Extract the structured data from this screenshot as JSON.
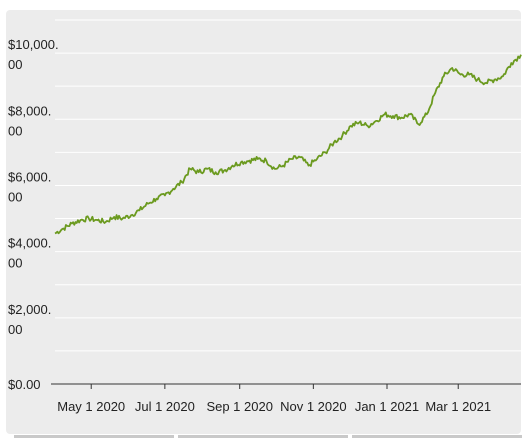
{
  "chart_data": {
    "type": "line",
    "title": "",
    "xlabel": "",
    "ylabel": "",
    "grid": true,
    "line_color": "#6b9a1f",
    "y_ticks": [
      {
        "value": 0,
        "line1": "$0.00",
        "line2": ""
      },
      {
        "value": 2000,
        "line1": "$2,000.",
        "line2": "00"
      },
      {
        "value": 4000,
        "line1": "$4,000.",
        "line2": "00"
      },
      {
        "value": 6000,
        "line1": "$6,000.",
        "line2": "00"
      },
      {
        "value": 8000,
        "line1": "$8,000.",
        "line2": "00"
      },
      {
        "value": 10000,
        "line1": "$10,000.",
        "line2": "00"
      }
    ],
    "x_ticks": [
      {
        "date": "2020-05-01",
        "label": "May 1 2020"
      },
      {
        "date": "2020-07-01",
        "label": "Jul 1 2020"
      },
      {
        "date": "2020-09-01",
        "label": "Sep 1 2020"
      },
      {
        "date": "2020-11-01",
        "label": "Nov 1 2020"
      },
      {
        "date": "2021-01-01",
        "label": "Jan 1 2021"
      },
      {
        "date": "2021-03-01",
        "label": "Mar 1 2021"
      }
    ],
    "xlim": [
      "2020-04-01",
      "2021-04-22"
    ],
    "ylim": [
      0,
      11000
    ],
    "series": [
      {
        "points": [
          [
            "2020-04-01",
            4550
          ],
          [
            "2020-04-08",
            4700
          ],
          [
            "2020-04-15",
            4850
          ],
          [
            "2020-04-22",
            4950
          ],
          [
            "2020-04-29",
            5000
          ],
          [
            "2020-05-06",
            4950
          ],
          [
            "2020-05-13",
            4900
          ],
          [
            "2020-05-20",
            5050
          ],
          [
            "2020-05-27",
            5000
          ],
          [
            "2020-06-03",
            5100
          ],
          [
            "2020-06-10",
            5250
          ],
          [
            "2020-06-17",
            5450
          ],
          [
            "2020-06-24",
            5600
          ],
          [
            "2020-07-01",
            5700
          ],
          [
            "2020-07-08",
            5900
          ],
          [
            "2020-07-15",
            6100
          ],
          [
            "2020-07-22",
            6500
          ],
          [
            "2020-07-29",
            6400
          ],
          [
            "2020-08-05",
            6500
          ],
          [
            "2020-08-12",
            6400
          ],
          [
            "2020-08-19",
            6450
          ],
          [
            "2020-08-26",
            6600
          ],
          [
            "2020-09-02",
            6700
          ],
          [
            "2020-09-09",
            6750
          ],
          [
            "2020-09-16",
            6800
          ],
          [
            "2020-09-23",
            6750
          ],
          [
            "2020-09-30",
            6500
          ],
          [
            "2020-10-07",
            6600
          ],
          [
            "2020-10-14",
            6800
          ],
          [
            "2020-10-21",
            6850
          ],
          [
            "2020-10-28",
            6600
          ],
          [
            "2020-11-04",
            6800
          ],
          [
            "2020-11-11",
            7000
          ],
          [
            "2020-11-18",
            7300
          ],
          [
            "2020-11-25",
            7500
          ],
          [
            "2020-12-02",
            7800
          ],
          [
            "2020-12-09",
            7900
          ],
          [
            "2020-12-16",
            7800
          ],
          [
            "2020-12-23",
            7950
          ],
          [
            "2020-12-30",
            8150
          ],
          [
            "2021-01-06",
            8100
          ],
          [
            "2021-01-13",
            8050
          ],
          [
            "2021-01-20",
            8150
          ],
          [
            "2021-01-27",
            7850
          ],
          [
            "2021-02-03",
            8150
          ],
          [
            "2021-02-10",
            8800
          ],
          [
            "2021-02-17",
            9300
          ],
          [
            "2021-02-24",
            9550
          ],
          [
            "2021-03-03",
            9350
          ],
          [
            "2021-03-10",
            9350
          ],
          [
            "2021-03-17",
            9200
          ],
          [
            "2021-03-24",
            9100
          ],
          [
            "2021-03-31",
            9200
          ],
          [
            "2021-04-07",
            9300
          ],
          [
            "2021-04-14",
            9700
          ],
          [
            "2021-04-22",
            9950
          ]
        ]
      }
    ]
  }
}
